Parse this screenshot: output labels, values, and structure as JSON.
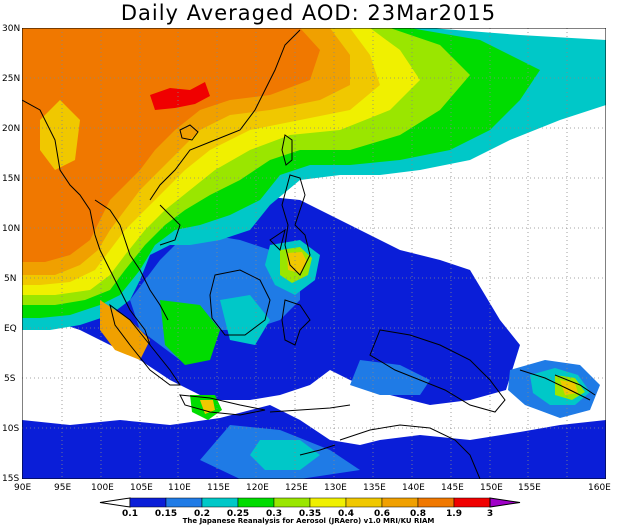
{
  "title": "Daily Averaged AOD: 23Mar2015",
  "credit": "The Japanese Reanalysis for Aerosol (JRAero) v1.0 MRI/KU RIAM",
  "lat_labels": [
    "30N",
    "25N",
    "20N",
    "15N",
    "10N",
    "5N",
    "EQ",
    "5S",
    "10S",
    "15S"
  ],
  "lon_labels": [
    "90E",
    "95E",
    "100E",
    "105E",
    "110E",
    "115E",
    "120E",
    "125E",
    "130E",
    "135E",
    "140E",
    "145E",
    "150E",
    "155E",
    "160E"
  ],
  "colorbar": {
    "labels": [
      "0.1",
      "0.15",
      "0.2",
      "0.25",
      "0.3",
      "0.35",
      "0.4",
      "0.6",
      "0.8",
      "1.9",
      "3"
    ],
    "colors": [
      "#0a1ed8",
      "#1f7be6",
      "#00c8c8",
      "#00dc00",
      "#9ae600",
      "#f0f000",
      "#f0c800",
      "#f0a000",
      "#f07800",
      "#f00000",
      "#a000c8"
    ]
  },
  "palette": {
    "ocean_low": "#ffffff",
    "aod_0_1": "#0a1ed8",
    "aod_0_15": "#1f7be6",
    "aod_0_2": "#00c8c8",
    "aod_0_25": "#00dc00",
    "aod_0_3": "#9ae600",
    "aod_0_35": "#f0f000",
    "aod_0_4": "#f0c800",
    "aod_0_6": "#f0a000",
    "aod_0_8": "#f07800",
    "aod_1_9": "#f00000"
  }
}
